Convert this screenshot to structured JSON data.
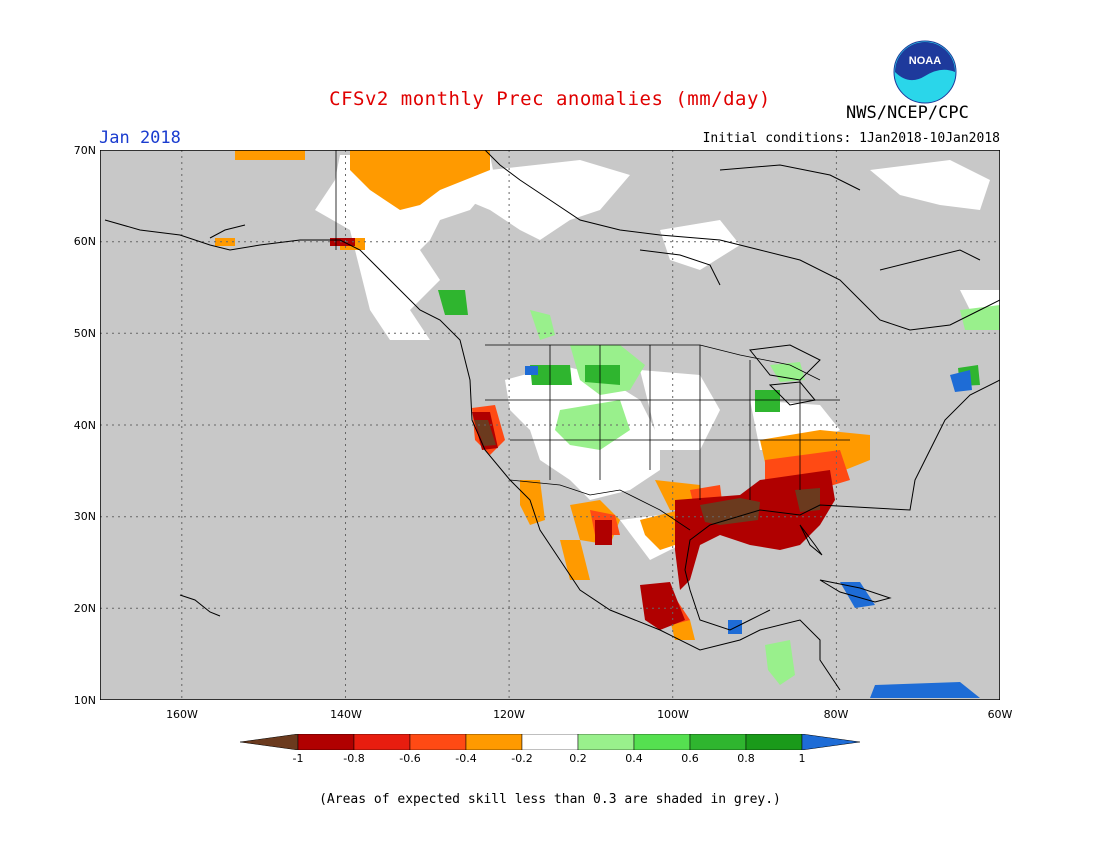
{
  "header": {
    "title": "CFSv2 monthly Prec anomalies (mm/day)",
    "month": "Jan 2018",
    "initial_conditions": "Initial conditions: 1Jan2018-10Jan2018",
    "agency": "NWS/NCEP/CPC",
    "logo_text": "NOAA"
  },
  "map": {
    "lon_range": [
      -170,
      -60
    ],
    "lat_range": [
      10,
      70
    ],
    "lat_labels": [
      "70N",
      "60N",
      "50N",
      "40N",
      "30N",
      "20N",
      "10N"
    ],
    "lon_labels": [
      "160W",
      "140W",
      "120W",
      "100W",
      "80W",
      "60W"
    ],
    "grey_mask_meaning": "skill < 0.3"
  },
  "colorbar": {
    "labels": [
      "-1",
      "-0.8",
      "-0.6",
      "-0.4",
      "-0.2",
      "0.2",
      "0.4",
      "0.6",
      "0.8",
      "1"
    ],
    "colors": [
      "#6b3a1e",
      "#b00000",
      "#e81d0f",
      "#ff4a14",
      "#ff9a00",
      "#ffffff",
      "#99f08c",
      "#55e050",
      "#2fb52f",
      "#1a9a1a",
      "#1e6cd6"
    ]
  },
  "footnote": "(Areas of expected skill less than 0.3 are shaded in grey.)"
}
